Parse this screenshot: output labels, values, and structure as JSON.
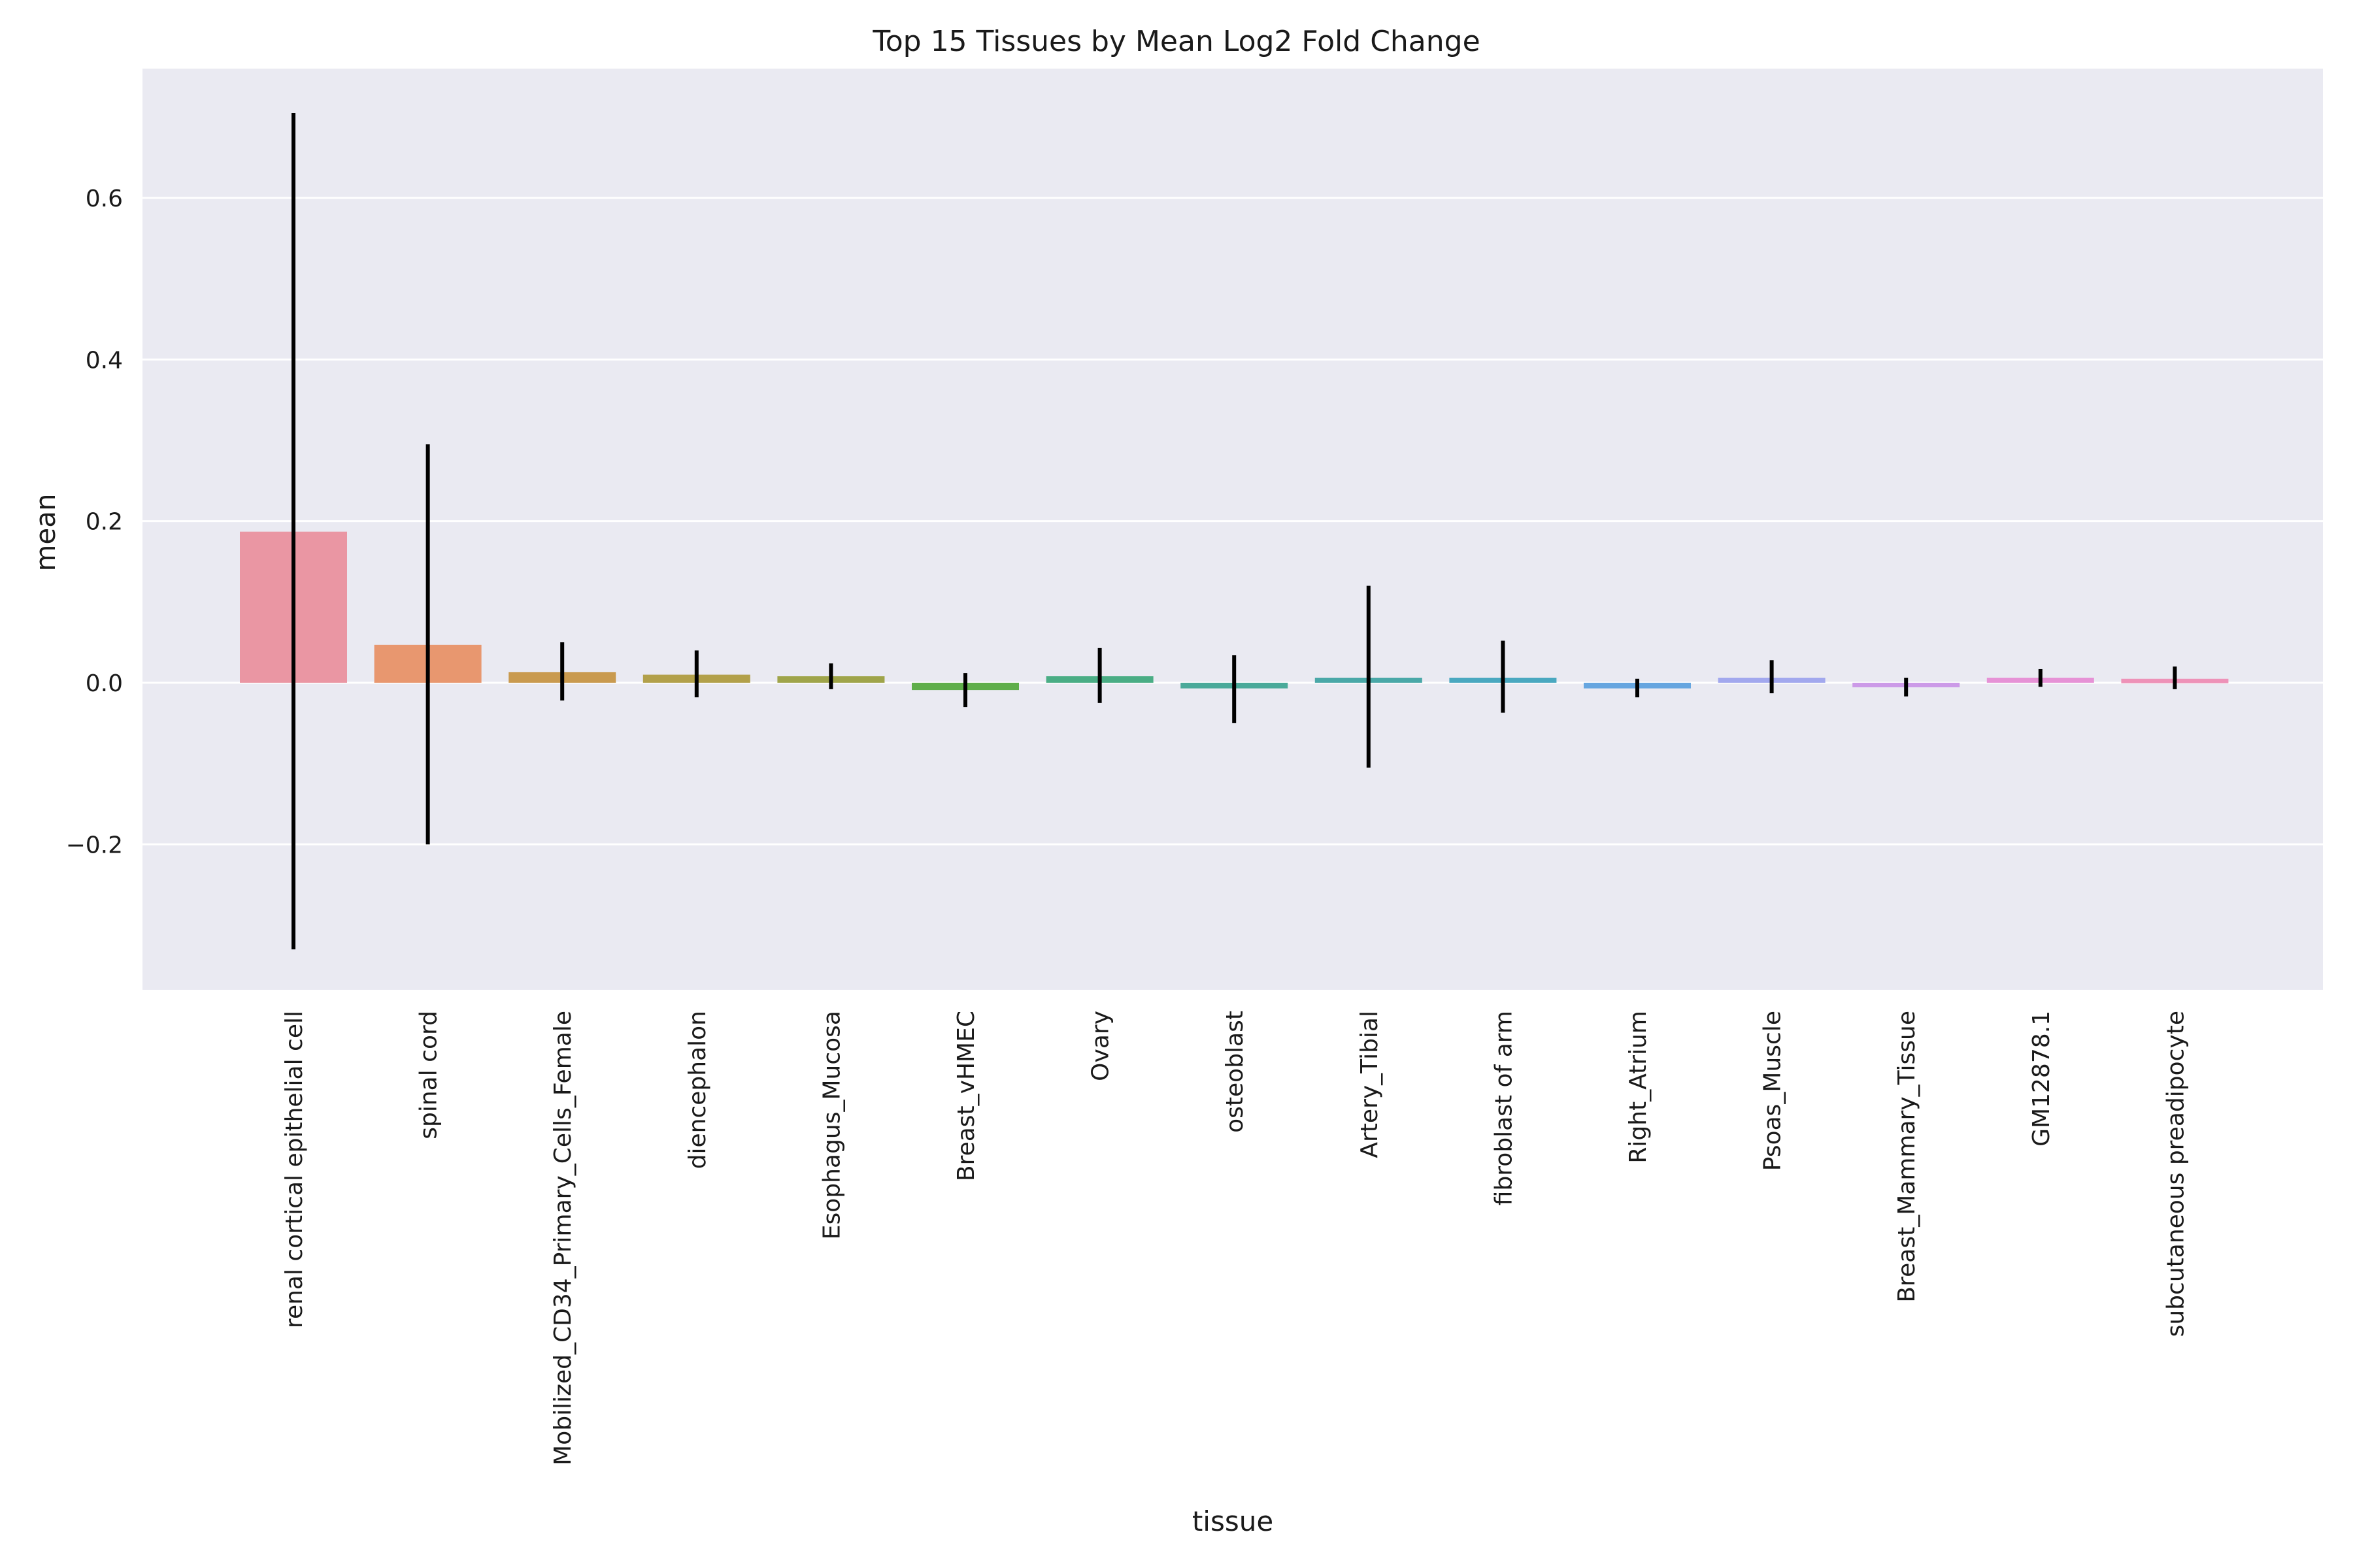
{
  "chart_data": {
    "type": "bar",
    "title": "Top 15 Tissues by Mean Log2 Fold Change",
    "xlabel": "tissue",
    "ylabel": "mean",
    "ylim": [
      -0.38,
      0.76
    ],
    "yticks": [
      -0.2,
      0.0,
      0.2,
      0.4,
      0.6
    ],
    "ytick_labels": [
      "−0.2",
      "0.0",
      "0.2",
      "0.4",
      "0.6"
    ],
    "grid": true,
    "background": "#eaeaf2",
    "categories": [
      "renal cortical epithelial cell",
      "spinal cord",
      "Mobilized_CD34_Primary_Cells_Female",
      "diencephalon",
      "Esophagus_Mucosa",
      "Breast_vHMEC",
      "Ovary",
      "osteoblast",
      "Artery_Tibial",
      "fibroblast of arm",
      "Right_Atrium",
      "Psoas_Muscle",
      "Breast_Mammary_Tissue",
      "GM12878.1",
      "subcutaneous preadipocyte"
    ],
    "values": [
      0.187,
      0.047,
      0.013,
      0.01,
      0.008,
      -0.009,
      0.008,
      -0.007,
      0.006,
      0.006,
      -0.007,
      0.006,
      -0.005,
      0.006,
      0.005
    ],
    "error_low": [
      -0.33,
      -0.2,
      -0.022,
      -0.018,
      -0.008,
      -0.03,
      -0.025,
      -0.05,
      -0.105,
      -0.037,
      -0.018,
      -0.013,
      -0.017,
      -0.005,
      -0.008
    ],
    "error_high": [
      0.705,
      0.295,
      0.05,
      0.04,
      0.024,
      0.012,
      0.043,
      0.034,
      0.12,
      0.052,
      0.005,
      0.028,
      0.006,
      0.017,
      0.02
    ],
    "colors": [
      "#ea96a3",
      "#e8976f",
      "#c99a4f",
      "#b2a04a",
      "#9fa44a",
      "#5fae4a",
      "#4aad85",
      "#4aaa9a",
      "#4aa8a8",
      "#4aa8c0",
      "#66a6e0",
      "#a2a8ee",
      "#cc9ae8",
      "#e692d6",
      "#ee92b8"
    ],
    "error_color": "#000000"
  }
}
